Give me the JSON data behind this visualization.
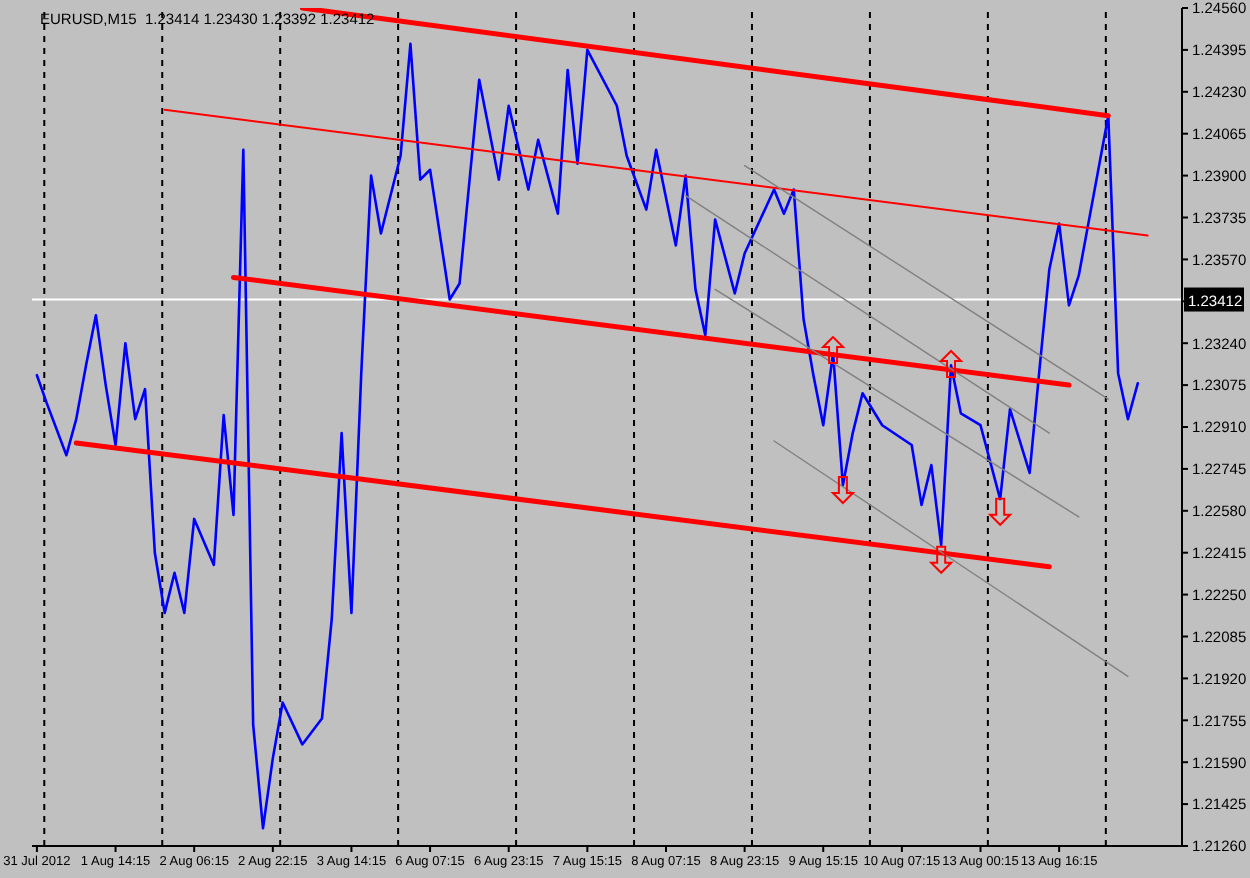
{
  "chart_data": {
    "type": "line",
    "title": "EURUSD,M15  1.23414 1.23430 1.23392 1.23412",
    "categories": [
      "31 Jul 2012",
      null,
      null,
      null,
      null,
      null,
      null,
      null,
      "1 Aug 14:15",
      null,
      null,
      null,
      null,
      null,
      null,
      null,
      "2 Aug 06:15",
      null,
      null,
      null,
      null,
      null,
      null,
      null,
      "2 Aug 22:15",
      null,
      null,
      null,
      null,
      null,
      null,
      null,
      "3 Aug 14:15",
      null,
      null,
      null,
      null,
      null,
      null,
      null,
      "6 Aug 07:15",
      null,
      null,
      null,
      null,
      null,
      null,
      null,
      "6 Aug 23:15",
      null,
      null,
      null,
      null,
      null,
      null,
      null,
      "7 Aug 15:15",
      null,
      null,
      null,
      null,
      null,
      null,
      null,
      "8 Aug 07:15",
      null,
      null,
      null,
      null,
      null,
      null,
      null,
      "8 Aug 23:15",
      null,
      null,
      null,
      null,
      null,
      null,
      null,
      "9 Aug 15:15",
      null,
      null,
      null,
      null,
      null,
      null,
      null,
      "10 Aug 07:15",
      null,
      null,
      null,
      null,
      null,
      null,
      null,
      "13 Aug 00:15",
      null,
      null,
      null,
      null,
      null,
      null,
      null,
      "13 Aug 16:15",
      null,
      null,
      null,
      null,
      null,
      null,
      null,
      null,
      null,
      null,
      null,
      null
    ],
    "series": [
      {
        "color": "#0000ff",
        "values": [
          1.23114,
          1.23004,
          null,
          1.22799,
          1.22941,
          1.23153,
          1.2335,
          1.23075,
          1.22839,
          1.2324,
          1.22941,
          1.23059,
          1.22414,
          1.22178,
          1.22336,
          1.22178,
          1.22548,
          null,
          1.22367,
          1.22957,
          1.22564,
          1.24002,
          1.21738,
          1.2133,
          1.21605,
          1.21825,
          null,
          1.2166,
          null,
          1.21762,
          1.22155,
          1.22886,
          1.22178,
          1.23122,
          1.239,
          1.23672,
          null,
          1.23978,
          1.24419,
          1.23884,
          1.23923,
          null,
          1.23412,
          1.23475,
          null,
          1.24277,
          null,
          1.23884,
          1.24175,
          null,
          1.23845,
          1.24041,
          null,
          1.2375,
          1.24316,
          1.23947,
          1.24395,
          null,
          null,
          1.24175,
          1.23978,
          null,
          1.23766,
          1.24002,
          null,
          1.23625,
          1.239,
          1.23452,
          1.23271,
          1.23727,
          null,
          1.23436,
          1.23593,
          null,
          null,
          1.23845,
          1.2375,
          1.23845,
          1.23334,
          1.23114,
          1.22917,
          1.232,
          1.22681,
          1.22886,
          1.23043,
          null,
          1.22917,
          null,
          null,
          1.22839,
          1.22603,
          1.2276,
          1.22446,
          1.23153,
          1.22964,
          null,
          1.22917,
          null,
          1.22626,
          1.2298,
          null,
          1.22729,
          1.23137,
          1.2353,
          1.23711,
          1.23389,
          1.23507,
          null,
          null,
          1.24136,
          1.23122,
          1.22941,
          1.23082,
          null,
          null,
          null,
          null
        ]
      },
      {
        "type": "line",
        "color": "#ff0000",
        "values": [
          null,
          null,
          null,
          null,
          null,
          null,
          null,
          null,
          null,
          null,
          null,
          null,
          null,
          null,
          null,
          null,
          null,
          null,
          null,
          null,
          null,
          null,
          null,
          null,
          null,
          null,
          null,
          1.2456,
          null,
          null,
          null,
          null,
          null,
          null,
          null,
          null,
          null,
          null,
          null,
          null,
          null,
          null,
          null,
          null,
          null,
          null,
          null,
          null,
          null,
          null,
          null,
          null,
          null,
          null,
          null,
          null,
          null,
          null,
          null,
          null,
          null,
          null,
          null,
          null,
          null,
          null,
          null,
          null,
          null,
          null,
          null,
          null,
          null,
          null,
          null,
          null,
          null,
          null,
          null,
          null,
          null,
          null,
          null,
          null,
          null,
          null,
          null,
          null,
          null,
          null,
          null,
          null,
          null,
          null,
          null,
          null,
          null,
          null,
          null,
          null,
          null,
          null,
          null,
          null,
          null,
          null,
          null,
          null,
          null,
          1.24136,
          null,
          null,
          null,
          null,
          null,
          null,
          null
        ]
      },
      {
        "type": "line",
        "color": "#ff0000",
        "values": [
          null,
          null,
          null,
          null,
          null,
          null,
          null,
          null,
          null,
          null,
          null,
          null,
          null,
          1.24159,
          null,
          null,
          null,
          null,
          null,
          null,
          null,
          null,
          null,
          null,
          null,
          null,
          null,
          null,
          null,
          null,
          null,
          null,
          null,
          null,
          null,
          null,
          null,
          null,
          null,
          null,
          null,
          null,
          null,
          null,
          null,
          null,
          null,
          null,
          null,
          null,
          null,
          null,
          null,
          null,
          null,
          null,
          null,
          null,
          null,
          null,
          null,
          null,
          null,
          null,
          null,
          null,
          null,
          null,
          null,
          null,
          null,
          null,
          null,
          null,
          null,
          null,
          null,
          null,
          null,
          null,
          null,
          null,
          null,
          null,
          null,
          null,
          null,
          null,
          null,
          null,
          null,
          null,
          null,
          null,
          null,
          null,
          null,
          null,
          null,
          null,
          null,
          null,
          null,
          null,
          null,
          null,
          null,
          null,
          null,
          null,
          null,
          null,
          null,
          1.23664,
          null,
          null,
          null
        ]
      },
      {
        "type": "line",
        "color": "#ff0000",
        "values": [
          null,
          null,
          null,
          null,
          null,
          null,
          null,
          null,
          null,
          null,
          null,
          null,
          null,
          null,
          null,
          null,
          null,
          null,
          null,
          null,
          1.23499,
          null,
          null,
          null,
          null,
          null,
          null,
          null,
          null,
          null,
          null,
          null,
          null,
          null,
          null,
          null,
          null,
          null,
          null,
          null,
          null,
          null,
          null,
          null,
          null,
          null,
          null,
          null,
          null,
          null,
          null,
          null,
          null,
          null,
          null,
          null,
          null,
          null,
          null,
          null,
          null,
          null,
          null,
          null,
          null,
          null,
          null,
          null,
          null,
          null,
          null,
          null,
          null,
          null,
          null,
          null,
          null,
          null,
          null,
          null,
          null,
          null,
          null,
          null,
          null,
          null,
          null,
          null,
          null,
          null,
          null,
          null,
          null,
          null,
          null,
          null,
          null,
          null,
          null,
          null,
          null,
          null,
          null,
          null,
          null,
          1.23075,
          null,
          null,
          null,
          null,
          null,
          null,
          null,
          null,
          null,
          null,
          null
        ]
      },
      {
        "type": "line",
        "color": "#ff0000",
        "values": [
          null,
          null,
          null,
          null,
          1.22847,
          null,
          null,
          null,
          null,
          null,
          null,
          null,
          null,
          null,
          null,
          null,
          null,
          null,
          null,
          null,
          null,
          null,
          null,
          null,
          null,
          null,
          null,
          null,
          null,
          null,
          null,
          null,
          null,
          null,
          null,
          null,
          null,
          null,
          null,
          null,
          null,
          null,
          null,
          null,
          null,
          null,
          null,
          null,
          null,
          null,
          null,
          null,
          null,
          null,
          null,
          null,
          null,
          null,
          null,
          null,
          null,
          null,
          null,
          null,
          null,
          null,
          null,
          null,
          null,
          null,
          null,
          null,
          null,
          null,
          null,
          null,
          null,
          null,
          null,
          null,
          null,
          null,
          null,
          null,
          null,
          null,
          null,
          null,
          null,
          null,
          null,
          null,
          null,
          null,
          null,
          null,
          null,
          null,
          null,
          null,
          null,
          null,
          null,
          1.2236,
          null,
          null,
          null,
          null,
          null,
          null,
          null,
          null,
          null,
          null,
          null,
          null,
          null
        ]
      },
      {
        "type": "line",
        "color": "#808080",
        "values": [
          null,
          null,
          null,
          null,
          null,
          null,
          null,
          null,
          null,
          null,
          null,
          null,
          null,
          null,
          null,
          null,
          null,
          null,
          null,
          null,
          null,
          null,
          null,
          null,
          null,
          null,
          null,
          null,
          null,
          null,
          null,
          null,
          null,
          null,
          null,
          null,
          null,
          null,
          null,
          null,
          null,
          null,
          null,
          null,
          null,
          null,
          null,
          null,
          null,
          null,
          null,
          null,
          null,
          null,
          null,
          null,
          null,
          null,
          null,
          null,
          null,
          null,
          null,
          null,
          null,
          null,
          null,
          null,
          null,
          null,
          null,
          null,
          1.23939,
          null,
          null,
          null,
          null,
          null,
          null,
          null,
          null,
          null,
          null,
          null,
          null,
          null,
          null,
          null,
          null,
          null,
          null,
          null,
          null,
          null,
          null,
          null,
          null,
          null,
          null,
          null,
          null,
          null,
          null,
          null,
          null,
          null,
          null,
          null,
          null,
          1.2302,
          null,
          null,
          null,
          null,
          null,
          null,
          null
        ]
      },
      {
        "type": "line",
        "color": "#808080",
        "values": [
          null,
          null,
          null,
          null,
          null,
          null,
          null,
          null,
          null,
          null,
          null,
          null,
          null,
          null,
          null,
          null,
          null,
          null,
          null,
          null,
          null,
          null,
          null,
          null,
          null,
          null,
          null,
          null,
          null,
          null,
          null,
          null,
          null,
          null,
          null,
          null,
          null,
          null,
          null,
          null,
          null,
          null,
          null,
          null,
          null,
          null,
          null,
          null,
          null,
          null,
          null,
          null,
          null,
          null,
          null,
          null,
          null,
          null,
          null,
          null,
          null,
          null,
          null,
          null,
          null,
          null,
          1.23821,
          null,
          null,
          null,
          null,
          null,
          null,
          null,
          null,
          null,
          null,
          null,
          null,
          null,
          null,
          null,
          null,
          null,
          null,
          null,
          null,
          null,
          null,
          null,
          null,
          null,
          null,
          null,
          null,
          null,
          null,
          null,
          null,
          null,
          null,
          null,
          null,
          1.22886,
          null,
          null,
          null,
          null,
          null,
          null,
          null,
          null,
          null,
          null,
          null,
          null,
          null
        ]
      },
      {
        "type": "line",
        "color": "#808080",
        "values": [
          null,
          null,
          null,
          null,
          null,
          null,
          null,
          null,
          null,
          null,
          null,
          null,
          null,
          null,
          null,
          null,
          null,
          null,
          null,
          null,
          null,
          null,
          null,
          null,
          null,
          null,
          null,
          null,
          null,
          null,
          null,
          null,
          null,
          null,
          null,
          null,
          null,
          null,
          null,
          null,
          null,
          null,
          null,
          null,
          null,
          null,
          null,
          null,
          null,
          null,
          null,
          null,
          null,
          null,
          null,
          null,
          null,
          null,
          null,
          null,
          null,
          null,
          null,
          null,
          null,
          null,
          null,
          null,
          null,
          1.23452,
          null,
          null,
          null,
          null,
          null,
          null,
          null,
          null,
          null,
          null,
          null,
          null,
          null,
          null,
          null,
          null,
          null,
          null,
          null,
          null,
          null,
          null,
          null,
          null,
          null,
          null,
          null,
          null,
          null,
          null,
          null,
          null,
          null,
          null,
          null,
          null,
          1.22556,
          null,
          null,
          null,
          null,
          null,
          null,
          null,
          null,
          null,
          null
        ]
      },
      {
        "type": "line",
        "color": "#808080",
        "values": [
          null,
          null,
          null,
          null,
          null,
          null,
          null,
          null,
          null,
          null,
          null,
          null,
          null,
          null,
          null,
          null,
          null,
          null,
          null,
          null,
          null,
          null,
          null,
          null,
          null,
          null,
          null,
          null,
          null,
          null,
          null,
          null,
          null,
          null,
          null,
          null,
          null,
          null,
          null,
          null,
          null,
          null,
          null,
          null,
          null,
          null,
          null,
          null,
          null,
          null,
          null,
          null,
          null,
          null,
          null,
          null,
          null,
          null,
          null,
          null,
          null,
          null,
          null,
          null,
          null,
          null,
          null,
          null,
          null,
          null,
          null,
          null,
          null,
          null,
          null,
          1.22855,
          null,
          null,
          null,
          null,
          null,
          null,
          null,
          null,
          null,
          null,
          null,
          null,
          null,
          null,
          null,
          null,
          null,
          null,
          null,
          null,
          null,
          null,
          null,
          null,
          null,
          null,
          null,
          null,
          null,
          null,
          null,
          null,
          null,
          null,
          null,
          1.21928,
          null,
          null,
          null,
          null,
          null
        ]
      },
      {
        "type": "scatter",
        "color": "#ff0000",
        "marker": "triangle",
        "values": [
          null,
          null,
          null,
          null,
          null,
          null,
          null,
          null,
          null,
          null,
          null,
          null,
          null,
          null,
          null,
          null,
          null,
          null,
          null,
          null,
          null,
          null,
          null,
          null,
          null,
          null,
          null,
          null,
          null,
          null,
          null,
          null,
          null,
          null,
          null,
          null,
          null,
          null,
          null,
          null,
          null,
          null,
          null,
          null,
          null,
          null,
          null,
          null,
          null,
          null,
          null,
          null,
          null,
          null,
          null,
          null,
          null,
          null,
          null,
          null,
          null,
          null,
          null,
          null,
          null,
          null,
          null,
          null,
          null,
          null,
          null,
          null,
          null,
          null,
          null,
          null,
          null,
          null,
          null,
          null,
          null,
          1.23209,
          null,
          null,
          null,
          null,
          null,
          null,
          null,
          null,
          null,
          null,
          null,
          1.23154,
          null,
          null,
          null,
          null,
          null,
          null,
          null,
          null,
          null,
          null,
          null,
          null,
          null,
          null,
          null,
          null,
          null,
          null,
          null,
          null,
          null,
          null,
          null
        ]
      },
      {
        "type": "scatter",
        "color": "#ff0000",
        "marker": "triangle",
        "values": [
          null,
          null,
          null,
          null,
          null,
          null,
          null,
          null,
          null,
          null,
          null,
          null,
          null,
          null,
          null,
          null,
          null,
          null,
          null,
          null,
          null,
          null,
          null,
          null,
          null,
          null,
          null,
          null,
          null,
          null,
          null,
          null,
          null,
          null,
          null,
          null,
          null,
          null,
          null,
          null,
          null,
          null,
          null,
          null,
          null,
          null,
          null,
          null,
          null,
          null,
          null,
          null,
          null,
          null,
          null,
          null,
          null,
          null,
          null,
          null,
          null,
          null,
          null,
          null,
          null,
          null,
          null,
          null,
          null,
          null,
          null,
          null,
          null,
          null,
          null,
          null,
          null,
          null,
          null,
          null,
          null,
          null,
          1.22666,
          null,
          null,
          null,
          null,
          null,
          null,
          null,
          null,
          null,
          1.22391,
          null,
          null,
          null,
          null,
          null,
          1.2258,
          null,
          null,
          null,
          null,
          null,
          null,
          null,
          null,
          null,
          null,
          null,
          null,
          null,
          null,
          null,
          null,
          null,
          null
        ]
      }
    ],
    "ylim": [
      1.2126,
      1.2456
    ],
    "yticks": [
      {
        "value": 1.2456,
        "label": "1.24560"
      },
      1.24395,
      {
        "value": 1.2423,
        "label": "1.24230"
      },
      1.24065,
      {
        "value": 1.239,
        "label": "1.23900"
      },
      1.23735,
      {
        "value": 1.2357,
        "label": "1.23570"
      },
      {
        "value": 1.23405,
        "label": null
      },
      {
        "value": 1.2324,
        "label": "1.23240"
      },
      1.23075,
      {
        "value": 1.2291,
        "label": "1.22910"
      },
      1.22745,
      {
        "value": 1.2258,
        "label": "1.22580"
      },
      1.22415,
      {
        "value": 1.2225,
        "label": "1.22250"
      },
      1.22085,
      {
        "value": 1.2192,
        "label": "1.21920"
      },
      1.21755,
      {
        "value": 1.2159,
        "label": "1.21590"
      },
      1.21425,
      {
        "value": 1.2126,
        "label": "1.21260"
      }
    ],
    "ref_lines": [
      {
        "axis": "y",
        "value": 1.23412,
        "label": "1.23412",
        "color": "#ffffff"
      }
    ]
  }
}
